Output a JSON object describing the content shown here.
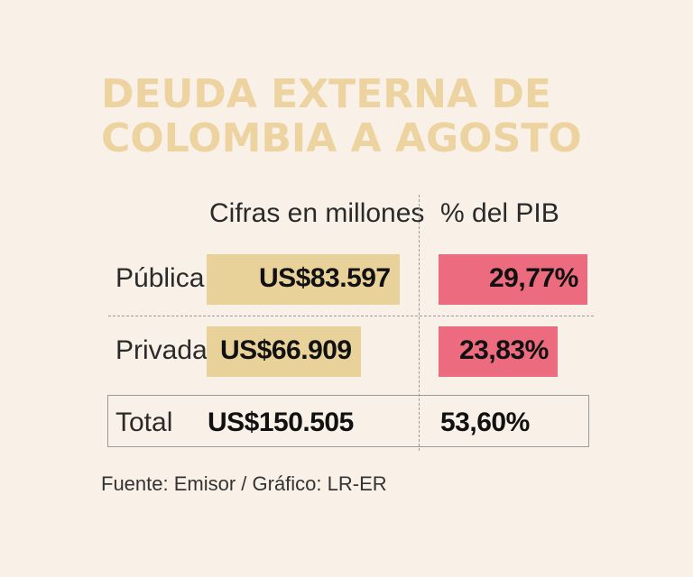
{
  "chart_data": {
    "type": "table",
    "title_line1": "DEUDA EXTERNA DE",
    "title_line2": "COLOMBIA A AGOSTO",
    "columns": [
      "Cifras en millones",
      "% del PIB"
    ],
    "rows": [
      {
        "label": "Pública",
        "amount_text": "US$83.597",
        "amount": 83597,
        "pct_text": "29,77%",
        "pct": 29.77
      },
      {
        "label": "Privada",
        "amount_text": "US$66.909",
        "amount": 66909,
        "pct_text": "23,83%",
        "pct": 23.83
      }
    ],
    "total": {
      "label": "Total",
      "amount_text": "US$150.505",
      "amount": 150505,
      "pct_text": "53,60%",
      "pct": 53.6
    },
    "colors": {
      "amount_bar": "#e9d19a",
      "pct_bar": "#ec6b7e",
      "title": "#ecd3a0"
    }
  },
  "source": "Fuente: Emisor / Gráfico: LR-ER"
}
